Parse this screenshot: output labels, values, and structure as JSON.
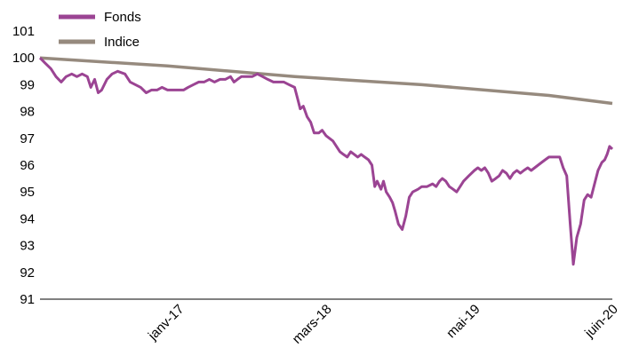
{
  "chart_data": {
    "type": "line",
    "title": "",
    "xlabel": "",
    "ylabel": "",
    "ylim": [
      91,
      101
    ],
    "y_ticks": [
      "91",
      "92",
      "93",
      "94",
      "95",
      "96",
      "97",
      "98",
      "99",
      "100",
      "101"
    ],
    "x_range": [
      "2015-12-31",
      "2020-06-30"
    ],
    "x_ticks": [
      {
        "label": "janv-17",
        "date": "2017-01-31"
      },
      {
        "label": "mars-18",
        "date": "2018-03-31"
      },
      {
        "label": "mai-19",
        "date": "2019-05-31"
      },
      {
        "label": "juin-20",
        "date": "2020-06-30"
      }
    ],
    "legend": {
      "position": "top-left"
    },
    "grid": false,
    "series": [
      {
        "name": "Fonds",
        "color": "#9b4493",
        "points": [
          [
            "2015-12-31",
            100.0
          ],
          [
            "2016-01-15",
            99.8
          ],
          [
            "2016-01-31",
            99.6
          ],
          [
            "2016-02-15",
            99.3
          ],
          [
            "2016-03-01",
            99.1
          ],
          [
            "2016-03-15",
            99.3
          ],
          [
            "2016-03-31",
            99.4
          ],
          [
            "2016-04-15",
            99.3
          ],
          [
            "2016-04-30",
            99.4
          ],
          [
            "2016-05-15",
            99.3
          ],
          [
            "2016-05-25",
            98.9
          ],
          [
            "2016-06-05",
            99.2
          ],
          [
            "2016-06-15",
            98.7
          ],
          [
            "2016-06-25",
            98.8
          ],
          [
            "2016-07-10",
            99.2
          ],
          [
            "2016-07-25",
            99.4
          ],
          [
            "2016-08-10",
            99.5
          ],
          [
            "2016-08-31",
            99.4
          ],
          [
            "2016-09-15",
            99.1
          ],
          [
            "2016-09-30",
            99.0
          ],
          [
            "2016-10-15",
            98.9
          ],
          [
            "2016-10-31",
            98.7
          ],
          [
            "2016-11-15",
            98.8
          ],
          [
            "2016-12-01",
            98.8
          ],
          [
            "2016-12-15",
            98.9
          ],
          [
            "2016-12-31",
            98.8
          ],
          [
            "2017-01-15",
            98.8
          ],
          [
            "2017-01-31",
            98.8
          ],
          [
            "2017-02-15",
            98.8
          ],
          [
            "2017-02-28",
            98.9
          ],
          [
            "2017-03-15",
            99.0
          ],
          [
            "2017-03-31",
            99.1
          ],
          [
            "2017-04-15",
            99.1
          ],
          [
            "2017-04-30",
            99.2
          ],
          [
            "2017-05-15",
            99.1
          ],
          [
            "2017-05-31",
            99.2
          ],
          [
            "2017-06-15",
            99.2
          ],
          [
            "2017-06-30",
            99.3
          ],
          [
            "2017-07-10",
            99.1
          ],
          [
            "2017-07-20",
            99.2
          ],
          [
            "2017-07-31",
            99.3
          ],
          [
            "2017-08-15",
            99.3
          ],
          [
            "2017-08-31",
            99.3
          ],
          [
            "2017-09-15",
            99.4
          ],
          [
            "2017-09-30",
            99.3
          ],
          [
            "2017-10-15",
            99.2
          ],
          [
            "2017-10-31",
            99.1
          ],
          [
            "2017-11-15",
            99.1
          ],
          [
            "2017-11-30",
            99.1
          ],
          [
            "2017-12-15",
            99.0
          ],
          [
            "2017-12-31",
            98.9
          ],
          [
            "2018-01-08",
            98.5
          ],
          [
            "2018-01-16",
            98.1
          ],
          [
            "2018-01-25",
            98.2
          ],
          [
            "2018-02-05",
            97.8
          ],
          [
            "2018-02-15",
            97.6
          ],
          [
            "2018-02-25",
            97.2
          ],
          [
            "2018-03-10",
            97.2
          ],
          [
            "2018-03-20",
            97.3
          ],
          [
            "2018-03-31",
            97.1
          ],
          [
            "2018-04-10",
            97.0
          ],
          [
            "2018-04-20",
            96.9
          ],
          [
            "2018-04-30",
            96.7
          ],
          [
            "2018-05-10",
            96.5
          ],
          [
            "2018-05-20",
            96.4
          ],
          [
            "2018-05-31",
            96.3
          ],
          [
            "2018-06-10",
            96.5
          ],
          [
            "2018-06-20",
            96.4
          ],
          [
            "2018-06-30",
            96.3
          ],
          [
            "2018-07-10",
            96.4
          ],
          [
            "2018-07-20",
            96.3
          ],
          [
            "2018-07-31",
            96.2
          ],
          [
            "2018-08-10",
            96.0
          ],
          [
            "2018-08-18",
            95.2
          ],
          [
            "2018-08-25",
            95.4
          ],
          [
            "2018-09-05",
            95.1
          ],
          [
            "2018-09-12",
            95.4
          ],
          [
            "2018-09-20",
            95.0
          ],
          [
            "2018-09-30",
            94.8
          ],
          [
            "2018-10-08",
            94.6
          ],
          [
            "2018-10-15",
            94.3
          ],
          [
            "2018-10-25",
            93.8
          ],
          [
            "2018-11-05",
            93.6
          ],
          [
            "2018-11-15",
            94.1
          ],
          [
            "2018-11-25",
            94.8
          ],
          [
            "2018-12-05",
            95.0
          ],
          [
            "2018-12-20",
            95.1
          ],
          [
            "2018-12-31",
            95.2
          ],
          [
            "2019-01-15",
            95.2
          ],
          [
            "2019-01-31",
            95.3
          ],
          [
            "2019-02-10",
            95.2
          ],
          [
            "2019-02-20",
            95.4
          ],
          [
            "2019-02-28",
            95.5
          ],
          [
            "2019-03-10",
            95.4
          ],
          [
            "2019-03-20",
            95.2
          ],
          [
            "2019-03-31",
            95.1
          ],
          [
            "2019-04-10",
            95.0
          ],
          [
            "2019-04-20",
            95.2
          ],
          [
            "2019-04-30",
            95.4
          ],
          [
            "2019-05-15",
            95.6
          ],
          [
            "2019-05-31",
            95.8
          ],
          [
            "2019-06-10",
            95.9
          ],
          [
            "2019-06-20",
            95.8
          ],
          [
            "2019-06-30",
            95.9
          ],
          [
            "2019-07-10",
            95.7
          ],
          [
            "2019-07-20",
            95.4
          ],
          [
            "2019-07-31",
            95.5
          ],
          [
            "2019-08-10",
            95.6
          ],
          [
            "2019-08-20",
            95.8
          ],
          [
            "2019-08-31",
            95.7
          ],
          [
            "2019-09-10",
            95.5
          ],
          [
            "2019-09-20",
            95.7
          ],
          [
            "2019-09-30",
            95.8
          ],
          [
            "2019-10-10",
            95.7
          ],
          [
            "2019-10-20",
            95.8
          ],
          [
            "2019-10-31",
            95.9
          ],
          [
            "2019-11-10",
            95.8
          ],
          [
            "2019-11-20",
            95.9
          ],
          [
            "2019-11-30",
            96.0
          ],
          [
            "2019-12-10",
            96.1
          ],
          [
            "2019-12-20",
            96.2
          ],
          [
            "2019-12-31",
            96.3
          ],
          [
            "2020-01-15",
            96.3
          ],
          [
            "2020-01-31",
            96.3
          ],
          [
            "2020-02-10",
            95.9
          ],
          [
            "2020-02-20",
            95.6
          ],
          [
            "2020-03-01",
            93.8
          ],
          [
            "2020-03-10",
            92.3
          ],
          [
            "2020-03-20",
            93.3
          ],
          [
            "2020-03-31",
            93.8
          ],
          [
            "2020-04-10",
            94.7
          ],
          [
            "2020-04-20",
            94.9
          ],
          [
            "2020-04-30",
            94.8
          ],
          [
            "2020-05-10",
            95.3
          ],
          [
            "2020-05-20",
            95.8
          ],
          [
            "2020-05-31",
            96.1
          ],
          [
            "2020-06-08",
            96.2
          ],
          [
            "2020-06-15",
            96.4
          ],
          [
            "2020-06-22",
            96.7
          ],
          [
            "2020-06-30",
            96.6
          ]
        ]
      },
      {
        "name": "Indice",
        "color": "#968a7e",
        "points": [
          [
            "2015-12-31",
            100.0
          ],
          [
            "2016-12-31",
            99.7
          ],
          [
            "2017-12-31",
            99.3
          ],
          [
            "2018-12-31",
            99.0
          ],
          [
            "2019-12-31",
            98.6
          ],
          [
            "2020-06-30",
            98.3
          ]
        ]
      }
    ]
  }
}
